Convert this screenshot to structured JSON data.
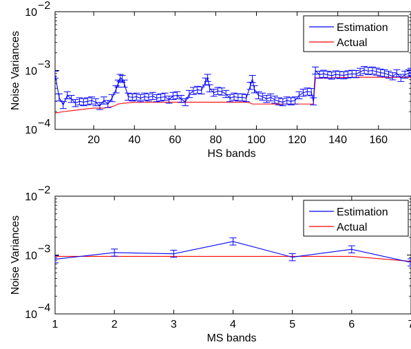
{
  "chart_data": [
    {
      "type": "line",
      "xlabel": "HS bands",
      "ylabel": "Noise Variances",
      "yscale": "log",
      "ylim": [
        0.0001,
        0.01
      ],
      "xlim": [
        1,
        176
      ],
      "xticks": [
        20,
        40,
        60,
        80,
        100,
        120,
        140,
        160
      ],
      "xtick_labels": [
        "20",
        "40",
        "60",
        "80",
        "100",
        "120",
        "140",
        "160"
      ],
      "yticks": [
        0.0001,
        0.001,
        0.01
      ],
      "ytick_labels": [
        {
          "base": "10",
          "exp": "−4"
        },
        {
          "base": "10",
          "exp": "−3"
        },
        {
          "base": "10",
          "exp": "−2"
        }
      ],
      "legend_position": "top-right",
      "error_bars": true,
      "series": [
        {
          "name": "Estimation",
          "color": "#0000ff",
          "error_bars": true,
          "x": [
            1,
            3,
            5,
            7,
            9,
            11,
            13,
            15,
            17,
            19,
            21,
            23,
            25,
            27,
            29,
            31,
            32,
            33,
            34,
            35,
            37,
            39,
            41,
            43,
            45,
            47,
            49,
            51,
            53,
            55,
            57,
            59,
            61,
            63,
            65,
            67,
            69,
            71,
            73,
            75,
            76,
            77,
            79,
            81,
            83,
            85,
            87,
            89,
            91,
            93,
            95,
            97,
            98,
            99,
            101,
            103,
            105,
            107,
            109,
            111,
            113,
            115,
            117,
            119,
            121,
            123,
            125,
            127,
            128,
            129,
            131,
            133,
            135,
            137,
            139,
            141,
            143,
            145,
            147,
            149,
            151,
            153,
            155,
            157,
            159,
            161,
            163,
            165,
            167,
            169,
            171,
            173,
            175,
            176
          ],
          "y": [
            0.00085,
            0.00035,
            0.00026,
            0.00038,
            0.00033,
            0.00028,
            0.0003,
            0.00029,
            0.0003,
            0.00031,
            0.00029,
            0.00025,
            0.00031,
            0.00027,
            0.00034,
            0.00048,
            0.0006,
            0.00075,
            0.00072,
            0.0006,
            0.00036,
            0.00035,
            0.00036,
            0.00034,
            0.00036,
            0.00035,
            0.00037,
            0.00034,
            0.00035,
            0.00036,
            0.00032,
            0.00037,
            0.00038,
            0.00033,
            0.00029,
            0.0004,
            0.00045,
            0.00047,
            0.00046,
            0.00065,
            0.00075,
            0.0005,
            0.00042,
            0.00045,
            0.00044,
            0.0004,
            0.00034,
            0.00036,
            0.00035,
            0.00035,
            0.00034,
            0.00055,
            0.00072,
            0.00048,
            0.00038,
            0.00036,
            0.00033,
            0.00035,
            0.00032,
            0.0003,
            0.00029,
            0.00031,
            0.0003,
            0.00031,
            0.00038,
            0.00042,
            0.00044,
            0.00043,
            0.0003,
            0.001,
            0.00085,
            0.00088,
            0.00085,
            0.00082,
            0.00086,
            0.00084,
            0.00083,
            0.00086,
            0.00088,
            0.00087,
            0.00095,
            0.00102,
            0.00098,
            0.001,
            0.00096,
            0.00092,
            0.0009,
            0.00085,
            0.0008,
            0.0009,
            0.00075,
            0.00085,
            0.0009,
            0.00095
          ]
        },
        {
          "name": "Actual",
          "color": "#ff0000",
          "x": [
            1,
            5,
            10,
            15,
            20,
            25,
            28,
            30,
            32,
            35,
            40,
            50,
            60,
            70,
            80,
            90,
            96,
            98,
            100,
            110,
            120,
            127,
            128,
            129,
            135,
            140,
            150,
            160,
            170,
            176
          ],
          "y": [
            0.00019,
            0.0002,
            0.00021,
            0.00022,
            0.00023,
            0.00023,
            0.00024,
            0.00025,
            0.00027,
            0.00028,
            0.00029,
            0.00029,
            0.00029,
            0.00029,
            0.00029,
            0.00029,
            0.00029,
            0.00027,
            0.00027,
            0.00027,
            0.00027,
            0.00027,
            0.00027,
            0.00075,
            0.00075,
            0.00076,
            0.00077,
            0.00077,
            0.00077,
            0.00077
          ]
        }
      ]
    },
    {
      "type": "line",
      "xlabel": "MS bands",
      "ylabel": "Noise Variances",
      "yscale": "log",
      "ylim": [
        0.0001,
        0.01
      ],
      "xlim": [
        1,
        7
      ],
      "xticks": [
        1,
        2,
        3,
        4,
        5,
        6,
        7
      ],
      "xtick_labels": [
        "1",
        "2",
        "3",
        "4",
        "5",
        "6",
        "7"
      ],
      "yticks": [
        0.0001,
        0.001,
        0.01
      ],
      "ytick_labels": [
        {
          "base": "10",
          "exp": "−4"
        },
        {
          "base": "10",
          "exp": "−3"
        },
        {
          "base": "10",
          "exp": "−2"
        }
      ],
      "legend_position": "top-right",
      "error_bars": true,
      "series": [
        {
          "name": "Estimation",
          "color": "#0000ff",
          "error_bars": true,
          "x": [
            1,
            2,
            3,
            4,
            5,
            6,
            7
          ],
          "y": [
            0.00085,
            0.0011,
            0.00105,
            0.0017,
            0.00092,
            0.00125,
            0.00075
          ]
        },
        {
          "name": "Actual",
          "color": "#ff0000",
          "x": [
            1,
            2,
            3,
            4,
            5,
            6,
            7
          ],
          "y": [
            0.00095,
            0.00095,
            0.00095,
            0.00095,
            0.00095,
            0.00095,
            0.00078
          ]
        }
      ]
    }
  ]
}
